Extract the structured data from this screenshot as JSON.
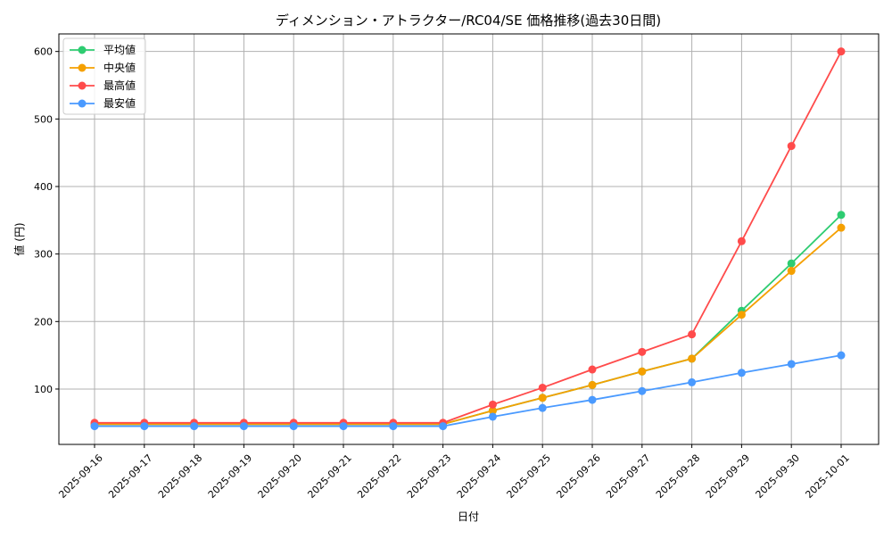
{
  "chart_data": {
    "type": "line",
    "title": "ディメンション・アトラクター/RC04/SE 価格推移(過去30日間)",
    "xlabel": "日付",
    "ylabel": "値 (円)",
    "ylim": [
      18,
      626
    ],
    "yticks": [
      100,
      200,
      300,
      400,
      500,
      600
    ],
    "grid": true,
    "legend_position": "top-left",
    "x": [
      "2025-09-16",
      "2025-09-17",
      "2025-09-18",
      "2025-09-19",
      "2025-09-20",
      "2025-09-21",
      "2025-09-22",
      "2025-09-23",
      "2025-09-24",
      "2025-09-25",
      "2025-09-26",
      "2025-09-27",
      "2025-09-28",
      "2025-09-29",
      "2025-09-30",
      "2025-10-01"
    ],
    "series": [
      {
        "name": "平均値",
        "color": "#2ecc71",
        "values": [
          48,
          48,
          48,
          48,
          48,
          48,
          48,
          48,
          68,
          87,
          106,
          126,
          145,
          216,
          286,
          358
        ]
      },
      {
        "name": "中央値",
        "color": "#f5a000",
        "values": [
          48,
          48,
          48,
          48,
          48,
          48,
          48,
          48,
          68,
          87,
          106,
          126,
          145,
          210,
          275,
          339
        ]
      },
      {
        "name": "最高値",
        "color": "#ff4b4b",
        "values": [
          50,
          50,
          50,
          50,
          50,
          50,
          50,
          50,
          77,
          102,
          129,
          155,
          181,
          319,
          460,
          600
        ]
      },
      {
        "name": "最安値",
        "color": "#4a9aff",
        "values": [
          45,
          45,
          45,
          45,
          45,
          45,
          45,
          45,
          59,
          72,
          84,
          97,
          110,
          124,
          137,
          150
        ]
      }
    ]
  }
}
